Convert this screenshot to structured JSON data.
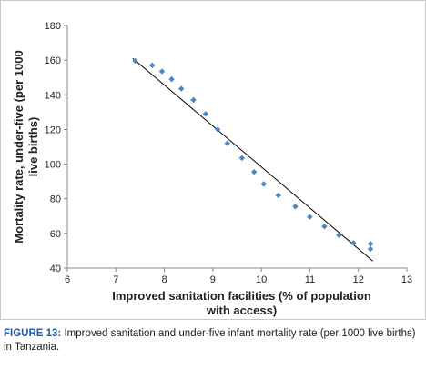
{
  "chart_data": {
    "type": "scatter",
    "title": "",
    "xlabel_lines": [
      "Improved sanitation facilities (% of population",
      "with access)"
    ],
    "ylabel_lines": [
      "Mortality rate, under-five (per 1000",
      "live births)"
    ],
    "xlim": [
      6,
      13
    ],
    "ylim": [
      40,
      180
    ],
    "xticks": [
      6,
      7,
      8,
      9,
      10,
      11,
      12,
      13
    ],
    "yticks": [
      40,
      60,
      80,
      100,
      120,
      140,
      160,
      180
    ],
    "grid": false,
    "legend": "none",
    "marker_color": "#4a86c8",
    "line_color": "#000000",
    "points": [
      {
        "x": 7.4,
        "y": 159.5
      },
      {
        "x": 7.75,
        "y": 157
      },
      {
        "x": 7.95,
        "y": 153.5
      },
      {
        "x": 8.15,
        "y": 149
      },
      {
        "x": 8.35,
        "y": 143.5
      },
      {
        "x": 8.6,
        "y": 137
      },
      {
        "x": 8.85,
        "y": 129
      },
      {
        "x": 9.1,
        "y": 120
      },
      {
        "x": 9.3,
        "y": 112
      },
      {
        "x": 9.6,
        "y": 103.5
      },
      {
        "x": 9.85,
        "y": 95.5
      },
      {
        "x": 10.05,
        "y": 88.5
      },
      {
        "x": 10.35,
        "y": 82
      },
      {
        "x": 10.7,
        "y": 75.5
      },
      {
        "x": 11.0,
        "y": 69.5
      },
      {
        "x": 11.3,
        "y": 64
      },
      {
        "x": 11.6,
        "y": 59
      },
      {
        "x": 11.9,
        "y": 54.5
      },
      {
        "x": 12.25,
        "y": 54
      },
      {
        "x": 12.25,
        "y": 51
      }
    ],
    "trendline": {
      "x": [
        7.35,
        12.3
      ],
      "y": [
        161,
        44
      ]
    }
  },
  "caption": {
    "label": "FIGURE 13:",
    "text": " Improved sanitation and under-five infant mortality rate (per 1000 live births) in Tanzania."
  }
}
